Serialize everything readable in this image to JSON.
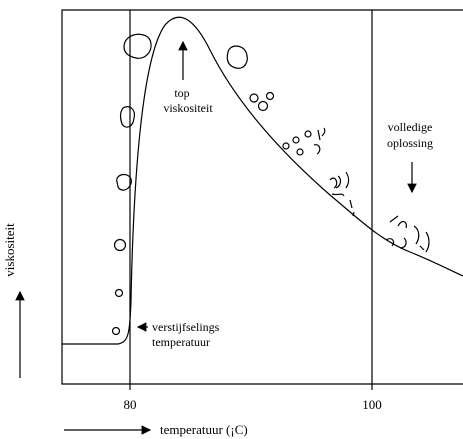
{
  "axes": {
    "x_label": "temperatuur (¡C)",
    "y_label": "viskositeit",
    "x_ticks": [
      "80",
      "100"
    ]
  },
  "annotations": {
    "peak": [
      "top",
      "viskositeit"
    ],
    "dissolution": [
      "volledige",
      "oplossing"
    ],
    "gelatinization": [
      "verstijfselings",
      "temperatuur"
    ]
  }
}
